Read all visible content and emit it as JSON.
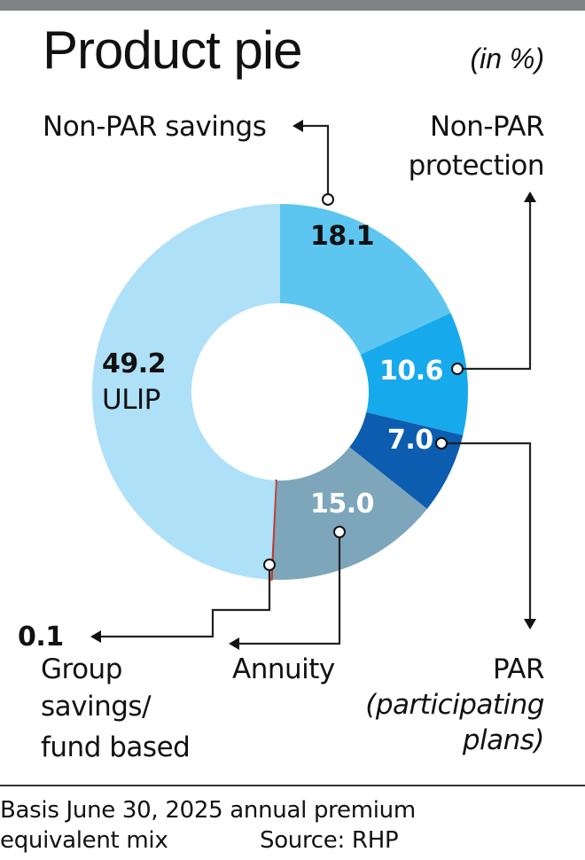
{
  "title": "Product pie",
  "unit": "(in %)",
  "chart_data": {
    "type": "pie",
    "donut": true,
    "title": "Product pie",
    "unit": "%",
    "slices": [
      {
        "name": "Non-PAR savings",
        "value": 18.1,
        "color": "#5cc6f0",
        "value_label": "18.1"
      },
      {
        "name": "Non-PAR protection",
        "value": 10.6,
        "color": "#16a9eb",
        "value_label": "10.6"
      },
      {
        "name": "PAR",
        "sub": "(participating plans)",
        "value": 7.0,
        "color": "#0c5db0",
        "value_label": "7.0"
      },
      {
        "name": "Annuity",
        "value": 15.0,
        "color": "#7da6bb",
        "value_label": "15.0"
      },
      {
        "name": "Group savings/ fund based",
        "value": 0.1,
        "color": "#c0392b",
        "value_label": "0.1"
      },
      {
        "name": "ULIP",
        "value": 49.2,
        "color": "#aee0f8",
        "value_label": "49.2"
      }
    ]
  },
  "labels": {
    "nonpar_savings": "Non-PAR savings",
    "nonpar_protection_1": "Non-PAR",
    "nonpar_protection_2": "protection",
    "par": "PAR",
    "par_sub_1": "(participating",
    "par_sub_2": "plans)",
    "annuity": "Annuity",
    "group_1": "Group",
    "group_2": "savings/",
    "group_3": "fund based",
    "ulip": "ULIP"
  },
  "footer": {
    "line1": "Basis June 30, 2025 annual premium",
    "line2": "equivalent mix",
    "source": "Source: RHP"
  }
}
